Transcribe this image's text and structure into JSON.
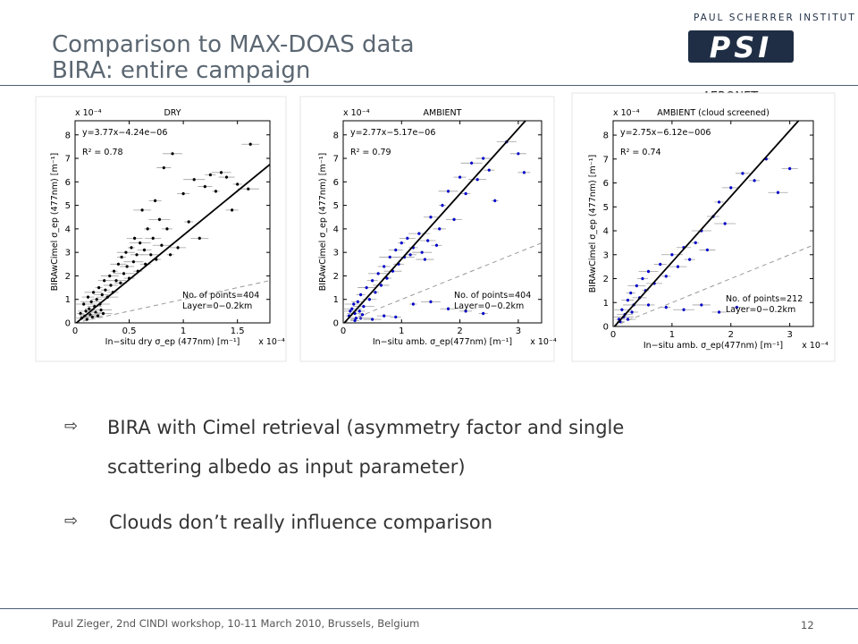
{
  "slide": {
    "title_line1": "Comparison to MAX-DOAS data",
    "title_line2": "BIRA: entire campaign",
    "logo_text": "PAUL SCHERRER INSTITUT",
    "logo_mark": "PSI",
    "aeronet_label": "AERONET",
    "bullets": [
      {
        "line1": "BIRA with Cimel retrieval (asymmetry factor and single",
        "line2": "scattering albedo as input parameter)"
      },
      {
        "line1": "Clouds don’t really influence comparison"
      }
    ],
    "bullet_glyph": "⇨",
    "footer": "Paul Zieger, 2nd CINDI workshop, 10-11 March 2010, Brussels, Belgium",
    "page_number": "12"
  },
  "colors": {
    "title": "#5b6772",
    "rule": "#4d5f73",
    "logo": "#1f2e44",
    "dry_points": "#000000",
    "ambient_points": "#0000cc",
    "errorbar": "#a0a0a0",
    "fit_line": "#000000",
    "one_to_one": "#999999"
  },
  "chart_data": [
    {
      "type": "scatter",
      "title": "DRY",
      "ylabel": "BIRAwCimel σ_ep (477nm) [m⁻¹]",
      "xlabel": "In−situ dry σ_ep (477nm) [m⁻¹]",
      "x_exponent": "x 10⁻⁴",
      "y_exponent": "x 10⁻⁴",
      "xlim": [
        0,
        1.8
      ],
      "ylim": [
        0,
        8.6
      ],
      "xticks": [
        0,
        0.5,
        1,
        1.5
      ],
      "xticklabels": [
        "0",
        "0.5",
        "1",
        "1.5"
      ],
      "yticks": [
        0,
        1,
        2,
        3,
        4,
        5,
        6,
        7,
        8
      ],
      "yticklabels": [
        "0",
        "1",
        "2",
        "3",
        "4",
        "5",
        "6",
        "7",
        "8"
      ],
      "annotations": [
        "y=3.77x−4.24e−06",
        "R² = 0.78",
        "No. of points=404",
        "Layer=0−0.2km"
      ],
      "fit": {
        "slope": 3.77,
        "intercept": -0.0424
      },
      "one_to_one": true,
      "marker_color": "#000000",
      "points": [
        [
          0.05,
          0.4
        ],
        [
          0.08,
          0.8
        ],
        [
          0.1,
          0.5
        ],
        [
          0.12,
          1.1
        ],
        [
          0.13,
          0.6
        ],
        [
          0.15,
          0.9
        ],
        [
          0.17,
          1.3
        ],
        [
          0.18,
          0.7
        ],
        [
          0.2,
          1.0
        ],
        [
          0.22,
          1.5
        ],
        [
          0.23,
          0.8
        ],
        [
          0.25,
          1.2
        ],
        [
          0.27,
          1.8
        ],
        [
          0.28,
          1.4
        ],
        [
          0.3,
          1.1
        ],
        [
          0.32,
          2.0
        ],
        [
          0.33,
          1.6
        ],
        [
          0.35,
          1.3
        ],
        [
          0.36,
          2.2
        ],
        [
          0.38,
          1.8
        ],
        [
          0.4,
          2.5
        ],
        [
          0.42,
          1.7
        ],
        [
          0.43,
          2.8
        ],
        [
          0.45,
          2.1
        ],
        [
          0.47,
          3.0
        ],
        [
          0.48,
          2.4
        ],
        [
          0.5,
          1.9
        ],
        [
          0.52,
          3.2
        ],
        [
          0.54,
          2.6
        ],
        [
          0.55,
          3.6
        ],
        [
          0.57,
          2.9
        ],
        [
          0.58,
          2.2
        ],
        [
          0.6,
          3.4
        ],
        [
          0.62,
          4.8
        ],
        [
          0.64,
          3.1
        ],
        [
          0.65,
          2.5
        ],
        [
          0.67,
          4.0
        ],
        [
          0.7,
          2.9
        ],
        [
          0.72,
          3.6
        ],
        [
          0.74,
          5.2
        ],
        [
          0.75,
          2.7
        ],
        [
          0.78,
          4.4
        ],
        [
          0.8,
          3.3
        ],
        [
          0.82,
          6.6
        ],
        [
          0.85,
          4.0
        ],
        [
          0.88,
          2.9
        ],
        [
          0.9,
          7.2
        ],
        [
          0.95,
          3.2
        ],
        [
          1.0,
          5.5
        ],
        [
          1.05,
          4.3
        ],
        [
          1.1,
          6.1
        ],
        [
          1.15,
          3.6
        ],
        [
          1.2,
          5.8
        ],
        [
          1.25,
          6.3
        ],
        [
          1.3,
          5.6
        ],
        [
          1.35,
          6.4
        ],
        [
          1.4,
          6.2
        ],
        [
          1.45,
          4.8
        ],
        [
          1.5,
          5.9
        ],
        [
          1.6,
          5.7
        ],
        [
          1.62,
          7.6
        ],
        [
          0.06,
          0.2
        ],
        [
          0.09,
          0.3
        ],
        [
          0.11,
          0.15
        ],
        [
          0.14,
          0.35
        ],
        [
          0.16,
          0.25
        ],
        [
          0.19,
          0.45
        ],
        [
          0.21,
          0.3
        ],
        [
          0.24,
          0.55
        ],
        [
          0.26,
          0.4
        ]
      ]
    },
    {
      "type": "scatter",
      "title": "AMBIENT",
      "ylabel": "BIRAwCimel σ_ep (477nm) [m⁻¹]",
      "xlabel": "In−situ amb. σ_ep(477nm) [m⁻¹]",
      "x_exponent": "x 10⁻⁴",
      "y_exponent": "x 10⁻⁴",
      "xlim": [
        0,
        3.4
      ],
      "ylim": [
        0,
        8.6
      ],
      "xticks": [
        0,
        1,
        2,
        3
      ],
      "xticklabels": [
        "0",
        "1",
        "2",
        "3"
      ],
      "yticks": [
        0,
        1,
        2,
        3,
        4,
        5,
        6,
        7,
        8
      ],
      "yticklabels": [
        "0",
        "1",
        "2",
        "3",
        "4",
        "5",
        "6",
        "7",
        "8"
      ],
      "annotations": [
        "y=2.77x−5.17e−06",
        "R² = 0.79",
        "No. of points=404",
        "Layer=0−0.2km"
      ],
      "fit": {
        "slope": 2.77,
        "intercept": -0.0517
      },
      "one_to_one": true,
      "marker_color": "#0000cc",
      "points": [
        [
          0.1,
          0.3
        ],
        [
          0.15,
          0.6
        ],
        [
          0.2,
          0.4
        ],
        [
          0.25,
          0.9
        ],
        [
          0.3,
          1.2
        ],
        [
          0.35,
          0.7
        ],
        [
          0.4,
          1.5
        ],
        [
          0.45,
          1.0
        ],
        [
          0.5,
          1.8
        ],
        [
          0.55,
          1.3
        ],
        [
          0.6,
          2.1
        ],
        [
          0.65,
          1.6
        ],
        [
          0.7,
          2.4
        ],
        [
          0.75,
          1.9
        ],
        [
          0.8,
          2.8
        ],
        [
          0.85,
          2.2
        ],
        [
          0.9,
          3.1
        ],
        [
          0.95,
          2.5
        ],
        [
          1.0,
          3.4
        ],
        [
          1.05,
          2.8
        ],
        [
          1.1,
          3.6
        ],
        [
          1.15,
          2.9
        ],
        [
          1.2,
          3.2
        ],
        [
          1.3,
          3.8
        ],
        [
          1.4,
          2.7
        ],
        [
          1.5,
          4.5
        ],
        [
          1.6,
          3.3
        ],
        [
          1.7,
          5.0
        ],
        [
          1.8,
          5.6
        ],
        [
          1.9,
          4.4
        ],
        [
          2.0,
          6.2
        ],
        [
          2.1,
          5.5
        ],
        [
          2.2,
          6.8
        ],
        [
          2.3,
          6.1
        ],
        [
          2.4,
          7.0
        ],
        [
          2.5,
          6.5
        ],
        [
          2.6,
          5.2
        ],
        [
          2.8,
          7.7
        ],
        [
          3.0,
          7.2
        ],
        [
          3.1,
          6.4
        ],
        [
          0.2,
          0.1
        ],
        [
          0.3,
          0.2
        ],
        [
          0.5,
          0.15
        ],
        [
          0.7,
          0.3
        ],
        [
          0.9,
          0.25
        ],
        [
          1.2,
          0.8
        ],
        [
          1.5,
          0.9
        ],
        [
          1.8,
          0.6
        ],
        [
          2.1,
          0.5
        ],
        [
          2.4,
          0.4
        ],
        [
          0.12,
          0.5
        ],
        [
          0.18,
          0.8
        ],
        [
          0.22,
          0.2
        ],
        [
          0.28,
          0.5
        ],
        [
          0.33,
          0.35
        ],
        [
          1.35,
          3.0
        ],
        [
          1.45,
          3.5
        ],
        [
          1.65,
          4.0
        ]
      ]
    },
    {
      "type": "scatter",
      "title": "AMBIENT (cloud screened)",
      "ylabel": "BIRAwCimel σ_ep (477nm) [m⁻¹]",
      "xlabel": "In−situ amb. σ_ep(477nm) [m⁻¹]",
      "x_exponent": "x 10⁻⁴",
      "y_exponent": "x 10⁻⁴",
      "xlim": [
        0,
        3.4
      ],
      "ylim": [
        0,
        8.6
      ],
      "xticks": [
        0,
        1,
        2,
        3
      ],
      "xticklabels": [
        "0",
        "1",
        "2",
        "3"
      ],
      "yticks": [
        0,
        1,
        2,
        3,
        4,
        5,
        6,
        7,
        8
      ],
      "yticklabels": [
        "0",
        "1",
        "2",
        "3",
        "4",
        "5",
        "6",
        "7",
        "8"
      ],
      "annotations": [
        "y=2.75x−6.12e−006",
        "R² = 0.74",
        "No. of points=212",
        "Layer=0−0.2km"
      ],
      "fit": {
        "slope": 2.75,
        "intercept": -0.0612
      },
      "one_to_one": true,
      "marker_color": "#0000cc",
      "points": [
        [
          0.1,
          0.3
        ],
        [
          0.15,
          0.7
        ],
        [
          0.2,
          0.5
        ],
        [
          0.25,
          1.1
        ],
        [
          0.3,
          1.4
        ],
        [
          0.35,
          0.9
        ],
        [
          0.4,
          1.7
        ],
        [
          0.45,
          1.2
        ],
        [
          0.5,
          2.0
        ],
        [
          0.55,
          1.5
        ],
        [
          0.6,
          2.3
        ],
        [
          0.7,
          1.8
        ],
        [
          0.8,
          2.6
        ],
        [
          0.9,
          2.1
        ],
        [
          1.0,
          3.0
        ],
        [
          1.1,
          2.5
        ],
        [
          1.2,
          3.3
        ],
        [
          1.3,
          2.8
        ],
        [
          1.4,
          3.5
        ],
        [
          1.5,
          4.0
        ],
        [
          1.6,
          3.2
        ],
        [
          1.7,
          4.6
        ],
        [
          1.8,
          5.2
        ],
        [
          1.9,
          4.3
        ],
        [
          2.0,
          5.8
        ],
        [
          2.2,
          6.4
        ],
        [
          2.4,
          6.1
        ],
        [
          2.6,
          7.0
        ],
        [
          2.8,
          5.6
        ],
        [
          3.0,
          6.6
        ],
        [
          0.6,
          0.9
        ],
        [
          0.9,
          0.8
        ],
        [
          1.2,
          0.7
        ],
        [
          1.5,
          0.9
        ],
        [
          1.8,
          0.6
        ],
        [
          2.1,
          0.8
        ],
        [
          0.12,
          0.2
        ],
        [
          0.18,
          0.4
        ],
        [
          0.25,
          0.3
        ],
        [
          0.32,
          0.6
        ]
      ]
    }
  ]
}
